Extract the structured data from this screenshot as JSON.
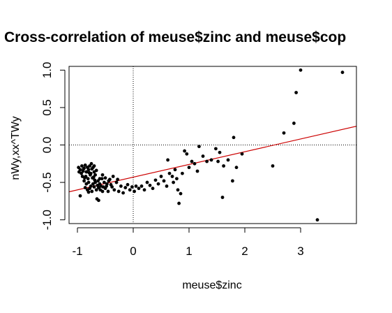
{
  "chart_data": {
    "type": "scatter",
    "title": "Cross-correlation of meuse$zinc and meuse$cop",
    "xlabel": "meuse$zinc",
    "ylabel": "nWy,xx^TWy",
    "xlim": [
      -1.15,
      4.0
    ],
    "ylim": [
      -1.05,
      1.05
    ],
    "x_ticks": [
      -1,
      0,
      1,
      2,
      3
    ],
    "y_ticks": [
      -1.0,
      -0.5,
      0.0,
      0.5,
      1.0
    ],
    "x_tick_labels": [
      "-1",
      "0",
      "1",
      "2",
      "3"
    ],
    "y_tick_labels": [
      "-1.0",
      "-0.5",
      "0.0",
      "0.5",
      "1.0"
    ],
    "grid": false,
    "reference_lines": {
      "vertical_x": 0,
      "horizontal_y": 0,
      "style": "dotted"
    },
    "fit_line": {
      "slope": 0.17,
      "intercept": -0.43,
      "color": "#cc0000"
    },
    "point_color": "#000000",
    "points": [
      [
        -0.98,
        -0.3
      ],
      [
        -0.95,
        -0.33
      ],
      [
        -0.92,
        -0.28
      ],
      [
        -0.9,
        -0.35
      ],
      [
        -0.88,
        -0.31
      ],
      [
        -0.86,
        -0.27
      ],
      [
        -0.84,
        -0.36
      ],
      [
        -0.82,
        -0.3
      ],
      [
        -0.8,
        -0.33
      ],
      [
        -0.78,
        -0.28
      ],
      [
        -0.76,
        -0.38
      ],
      [
        -0.74,
        -0.32
      ],
      [
        -0.72,
        -0.3
      ],
      [
        -0.7,
        -0.36
      ],
      [
        -0.68,
        -0.4
      ],
      [
        -0.66,
        -0.34
      ],
      [
        -0.97,
        -0.36
      ],
      [
        -0.93,
        -0.38
      ],
      [
        -0.89,
        -0.32
      ],
      [
        -0.85,
        -0.42
      ],
      [
        -0.81,
        -0.45
      ],
      [
        -0.77,
        -0.4
      ],
      [
        -0.73,
        -0.44
      ],
      [
        -0.69,
        -0.47
      ],
      [
        -0.88,
        -0.48
      ],
      [
        -0.84,
        -0.52
      ],
      [
        -0.8,
        -0.5
      ],
      [
        -0.76,
        -0.55
      ],
      [
        -0.72,
        -0.52
      ],
      [
        -0.68,
        -0.5
      ],
      [
        -0.64,
        -0.54
      ],
      [
        -0.6,
        -0.52
      ],
      [
        -0.86,
        -0.57
      ],
      [
        -0.82,
        -0.6
      ],
      [
        -0.78,
        -0.58
      ],
      [
        -0.74,
        -0.62
      ],
      [
        -0.7,
        -0.56
      ],
      [
        -0.66,
        -0.6
      ],
      [
        -0.62,
        -0.57
      ],
      [
        -0.58,
        -0.55
      ],
      [
        -0.95,
        -0.68
      ],
      [
        -0.8,
        -0.63
      ],
      [
        -0.65,
        -0.72
      ],
      [
        -0.62,
        -0.74
      ],
      [
        -0.55,
        -0.62
      ],
      [
        -0.5,
        -0.58
      ],
      [
        -0.45,
        -0.62
      ],
      [
        -0.4,
        -0.53
      ],
      [
        -0.56,
        -0.45
      ],
      [
        -0.52,
        -0.5
      ],
      [
        -0.48,
        -0.55
      ],
      [
        -0.44,
        -0.48
      ],
      [
        -0.38,
        -0.56
      ],
      [
        -0.34,
        -0.6
      ],
      [
        -0.3,
        -0.5
      ],
      [
        -0.26,
        -0.62
      ],
      [
        -0.22,
        -0.55
      ],
      [
        -0.18,
        -0.64
      ],
      [
        -0.14,
        -0.57
      ],
      [
        -0.1,
        -0.53
      ],
      [
        -0.06,
        -0.6
      ],
      [
        -0.02,
        -0.56
      ],
      [
        0.02,
        -0.62
      ],
      [
        0.05,
        -0.55
      ],
      [
        0.1,
        -0.58
      ],
      [
        0.15,
        -0.55
      ],
      [
        0.2,
        -0.6
      ],
      [
        0.25,
        -0.5
      ],
      [
        0.3,
        -0.54
      ],
      [
        0.35,
        -0.58
      ],
      [
        0.4,
        -0.47
      ],
      [
        0.45,
        -0.52
      ],
      [
        0.5,
        -0.42
      ],
      [
        0.55,
        -0.48
      ],
      [
        0.6,
        -0.55
      ],
      [
        0.62,
        -0.2
      ],
      [
        0.65,
        -0.38
      ],
      [
        0.7,
        -0.42
      ],
      [
        0.72,
        -0.5
      ],
      [
        0.75,
        -0.33
      ],
      [
        0.78,
        -0.45
      ],
      [
        0.8,
        -0.6
      ],
      [
        0.82,
        -0.78
      ],
      [
        0.85,
        -0.65
      ],
      [
        0.88,
        -0.38
      ],
      [
        0.92,
        -0.08
      ],
      [
        0.96,
        -0.12
      ],
      [
        1.0,
        -0.3
      ],
      [
        1.05,
        -0.22
      ],
      [
        1.1,
        -0.25
      ],
      [
        1.15,
        -0.35
      ],
      [
        1.18,
        -0.02
      ],
      [
        1.25,
        -0.15
      ],
      [
        1.32,
        -0.22
      ],
      [
        1.4,
        -0.2
      ],
      [
        1.48,
        -0.05
      ],
      [
        1.52,
        -0.22
      ],
      [
        1.55,
        -0.1
      ],
      [
        1.6,
        -0.7
      ],
      [
        1.62,
        -0.28
      ],
      [
        1.7,
        -0.2
      ],
      [
        1.78,
        -0.48
      ],
      [
        1.8,
        0.1
      ],
      [
        1.85,
        -0.3
      ],
      [
        1.95,
        -0.12
      ],
      [
        2.5,
        -0.28
      ],
      [
        2.7,
        0.16
      ],
      [
        2.88,
        0.29
      ],
      [
        2.92,
        0.7
      ],
      [
        3.0,
        1.0
      ],
      [
        3.3,
        -1.0
      ],
      [
        3.75,
        0.97
      ],
      [
        -0.75,
        -0.25
      ],
      [
        -0.7,
        -0.28
      ],
      [
        -0.6,
        -0.45
      ],
      [
        -0.55,
        -0.4
      ],
      [
        -0.5,
        -0.44
      ],
      [
        -0.42,
        -0.46
      ],
      [
        -0.36,
        -0.42
      ],
      [
        -0.28,
        -0.46
      ],
      [
        -0.91,
        -0.42
      ],
      [
        -0.87,
        -0.44
      ],
      [
        -0.79,
        -0.37
      ],
      [
        -0.71,
        -0.43
      ],
      [
        -0.63,
        -0.48
      ],
      [
        -0.59,
        -0.6
      ],
      [
        -0.54,
        -0.56
      ],
      [
        -0.47,
        -0.52
      ]
    ]
  }
}
